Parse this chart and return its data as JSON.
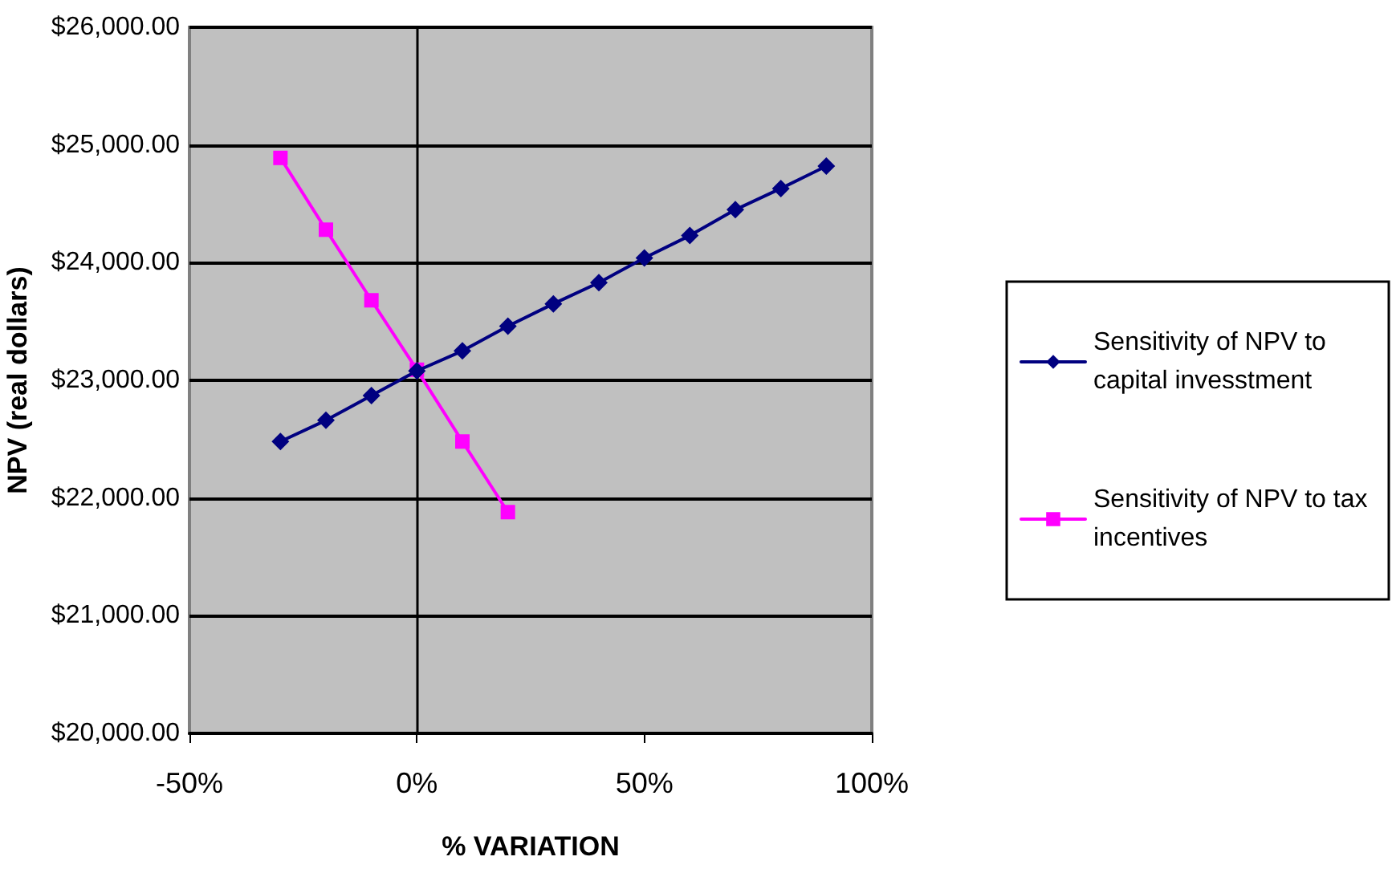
{
  "chart_data": {
    "type": "line",
    "xlabel": "% VARIATION",
    "ylabel": "NPV (real dollars)",
    "xlim": [
      -50,
      100
    ],
    "xticks": [
      {
        "value": -50,
        "label": "-50%"
      },
      {
        "value": 0,
        "label": "0%"
      },
      {
        "value": 50,
        "label": "50%"
      },
      {
        "value": 100,
        "label": "100%"
      }
    ],
    "ylim": [
      20000,
      26000
    ],
    "yticks": [
      {
        "value": 20000,
        "label": "$20,000.00"
      },
      {
        "value": 21000,
        "label": "$21,000.00"
      },
      {
        "value": 22000,
        "label": "$22,000.00"
      },
      {
        "value": 23000,
        "label": "$23,000.00"
      },
      {
        "value": 24000,
        "label": "$24,000.00"
      },
      {
        "value": 25000,
        "label": "$25,000.00"
      },
      {
        "value": 26000,
        "label": "$26,000.00"
      }
    ],
    "grid": "y",
    "legend": "right",
    "line_style": "solid",
    "series": [
      {
        "name": "Sensitivity of NPV to capital invesstment",
        "color": "#000080",
        "marker": "diamond",
        "x": [
          -30,
          -20,
          -10,
          0,
          10,
          20,
          30,
          40,
          50,
          60,
          70,
          80,
          90
        ],
        "values": [
          22480,
          22660,
          22870,
          23080,
          23250,
          23460,
          23650,
          23830,
          24040,
          24230,
          24450,
          24630,
          24820
        ]
      },
      {
        "name": "Sensitivity of NPV to tax incentives",
        "color": "#ff00ff",
        "marker": "square",
        "x": [
          -30,
          -20,
          -10,
          0,
          10,
          20
        ],
        "values": [
          24890,
          24280,
          23680,
          23090,
          22480,
          21880
        ]
      }
    ]
  }
}
